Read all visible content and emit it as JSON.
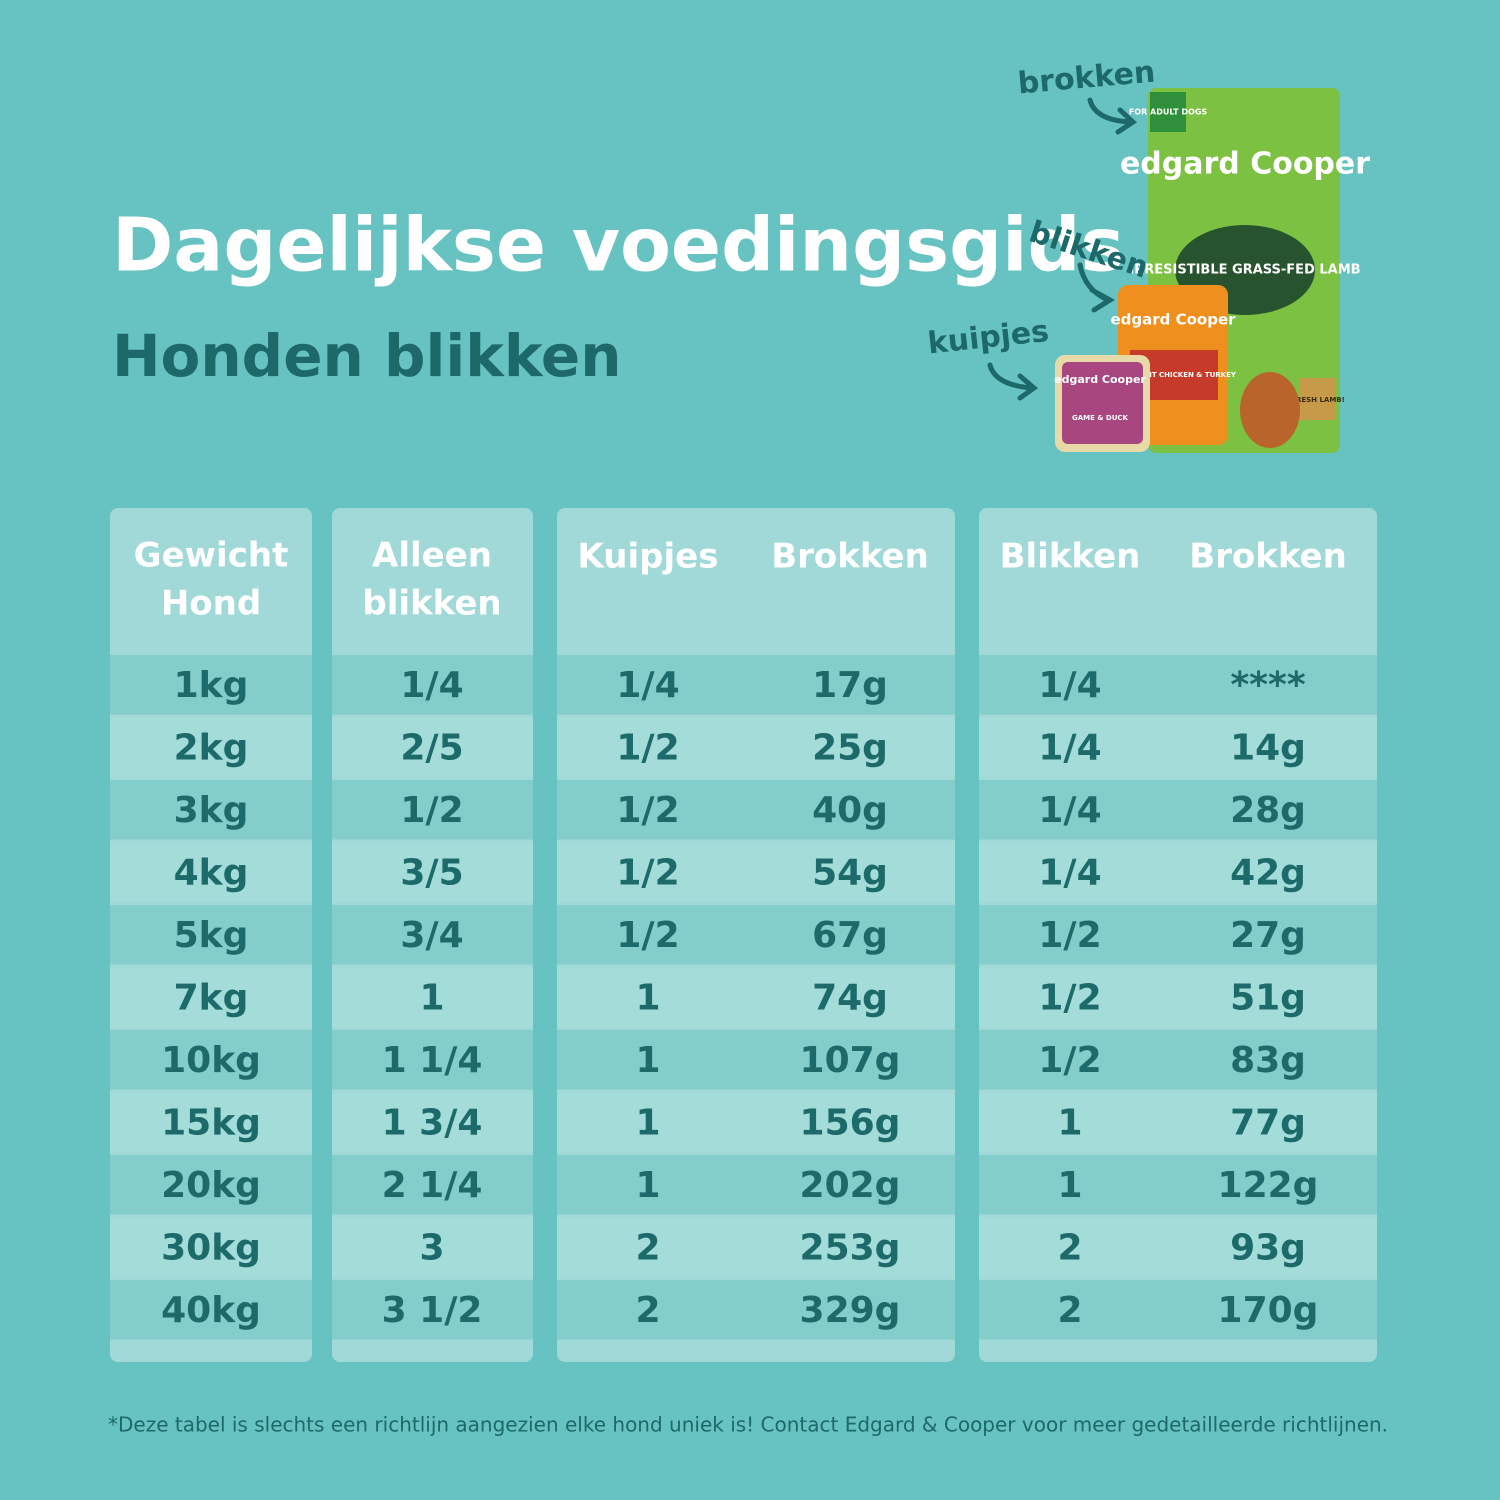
{
  "header": {
    "title": "Dagelijkse voedingsgids",
    "subtitle": "Honden blikken"
  },
  "products": {
    "labels": [
      "brokken",
      "blikken",
      "kuipjes"
    ],
    "bag": {
      "badge": "FOR ADULT DOGS",
      "brand": "edgard Cooper",
      "name": "IRRESISTIBLE GRASS-FED LAMB",
      "sign": "FRESH LAMB!"
    },
    "can": {
      "brand": "edgard Cooper",
      "name": "SUCCULENT CHICKEN & TURKEY"
    },
    "tub": {
      "brand": "edgard Cooper",
      "name": "GAME & DUCK"
    }
  },
  "table": {
    "headers": [
      [
        "Gewicht",
        "Hond"
      ],
      [
        "Alleen",
        "blikken"
      ],
      [
        "Kuipjes"
      ],
      [
        "Brokken"
      ],
      [
        "Blikken"
      ],
      [
        "Brokken"
      ]
    ],
    "rows": [
      [
        "1kg",
        "1/4",
        "1/4",
        "17g",
        "1/4",
        "****"
      ],
      [
        "2kg",
        "2/5",
        "1/2",
        "25g",
        "1/4",
        "14g"
      ],
      [
        "3kg",
        "1/2",
        "1/2",
        "40g",
        "1/4",
        "28g"
      ],
      [
        "4kg",
        "3/5",
        "1/2",
        "54g",
        "1/4",
        "42g"
      ],
      [
        "5kg",
        "3/4",
        "1/2",
        "67g",
        "1/2",
        "27g"
      ],
      [
        "7kg",
        "1",
        "1",
        "74g",
        "1/2",
        "51g"
      ],
      [
        "10kg",
        "1 1/4",
        "1",
        "107g",
        "1/2",
        "83g"
      ],
      [
        "15kg",
        "1 3/4",
        "1",
        "156g",
        "1",
        "77g"
      ],
      [
        "20kg",
        "2 1/4",
        "1",
        "202g",
        "1",
        "122g"
      ],
      [
        "30kg",
        "3",
        "2",
        "253g",
        "2",
        "93g"
      ],
      [
        "40kg",
        "3 1/2",
        "2",
        "329g",
        "2",
        "170g"
      ]
    ]
  },
  "footnote": "*Deze tabel is slechts een richtlijn aangezien elke hond uniek is! Contact Edgard & Cooper voor meer gedetailleerde richtlijnen."
}
